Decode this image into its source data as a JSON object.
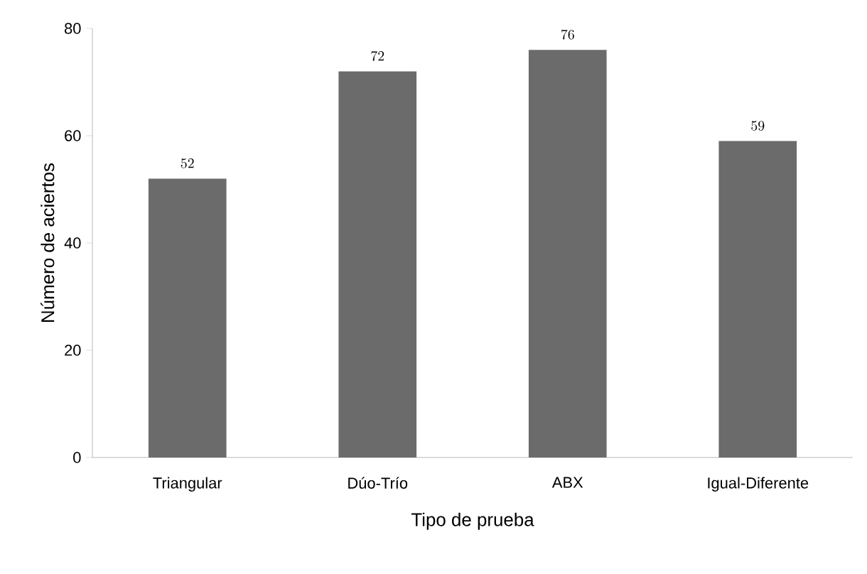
{
  "chart_data": {
    "type": "bar",
    "xlabel": "Tipo de prueba",
    "ylabel": "Número de aciertos",
    "categories": [
      "Triangular",
      "Dúo-Trío",
      "ABX",
      "Igual-Diferente"
    ],
    "values": [
      52,
      72,
      76,
      59
    ],
    "color": "#6b6b6b",
    "ylim": [
      0,
      80
    ],
    "yticks": [
      0,
      20,
      40,
      60,
      80
    ],
    "data_labels": true,
    "grid": false
  }
}
